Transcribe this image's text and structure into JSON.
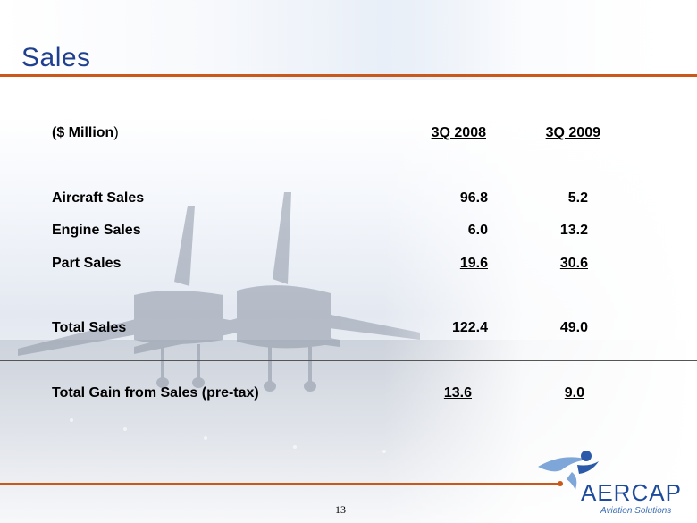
{
  "slide": {
    "title": "Sales",
    "page_number": "13"
  },
  "table": {
    "unit_label_bold": "($ Million",
    "unit_label_close": ")",
    "columns": [
      "3Q 2008",
      "3Q 2009"
    ],
    "rows": [
      {
        "label": "Aircraft Sales",
        "values": [
          "96.8",
          "5.2"
        ]
      },
      {
        "label": "Engine Sales",
        "values": [
          "6.0",
          "13.2"
        ]
      },
      {
        "label": "Part Sales",
        "values": [
          "19.6",
          "30.6"
        ]
      }
    ],
    "total": {
      "label": "Total Sales",
      "values": [
        "122.4",
        "49.0"
      ]
    },
    "gain": {
      "label": "Total Gain from Sales (pre-tax)",
      "values": [
        "13.6",
        "9.0"
      ]
    }
  },
  "logo": {
    "word": "AERCAP",
    "tagline": "Aviation Solutions"
  },
  "colors": {
    "title": "#1f3f8f",
    "accent_rule": "#c9581a",
    "logo_blue": "#1c4a9c"
  }
}
